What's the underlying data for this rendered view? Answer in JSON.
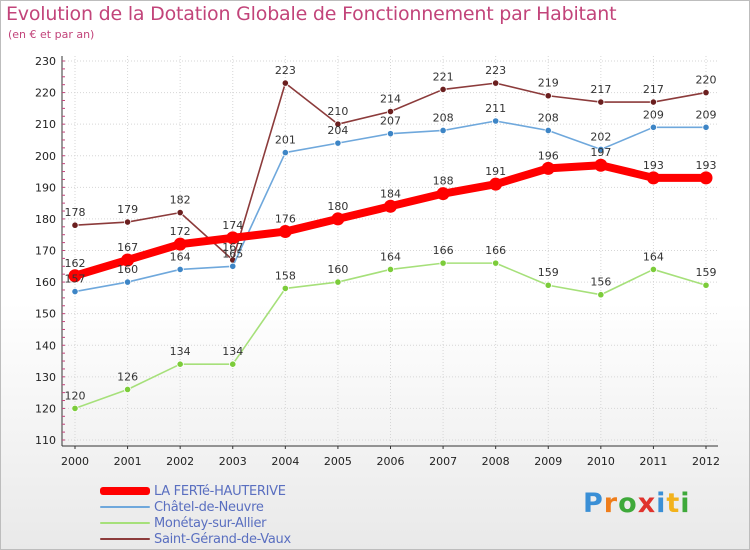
{
  "title": "Evolution de la Dotation Globale de Fonctionnement par Habitant",
  "subtitle": "(en € et par an)",
  "logo": {
    "text": "Proxiti",
    "colors": [
      "#3a8fd6",
      "#ef7d1a",
      "#3ea93a",
      "#e0332d",
      "#3a8fd6",
      "#f2b21c",
      "#3ea93a"
    ]
  },
  "chart_data": {
    "type": "line",
    "x": [
      2000,
      2001,
      2002,
      2003,
      2004,
      2005,
      2006,
      2007,
      2008,
      2009,
      2010,
      2011,
      2012
    ],
    "ylim": [
      110,
      230
    ],
    "yticks": [
      110,
      120,
      130,
      140,
      150,
      160,
      170,
      180,
      190,
      200,
      210,
      220,
      230
    ],
    "grid": true,
    "legend_position": "bottom-left",
    "series": [
      {
        "name": "LA FERTé-HAUTERIVE",
        "color": "#ff0000",
        "values": [
          162,
          167,
          172,
          174,
          176,
          180,
          184,
          188,
          191,
          196,
          197,
          193,
          193
        ]
      },
      {
        "name": "Châtel-de-Neuvre",
        "color": "#6fa8dc",
        "marker": "#3d85c6",
        "values": [
          157,
          160,
          164,
          165,
          201,
          204,
          207,
          208,
          211,
          208,
          202,
          209,
          209
        ]
      },
      {
        "name": "Monétay-sur-Allier",
        "color": "#a6e07a",
        "marker": "#7ccc3a",
        "values": [
          120,
          126,
          134,
          134,
          158,
          160,
          164,
          166,
          166,
          159,
          156,
          164,
          159
        ]
      },
      {
        "name": "Saint-Gérand-de-Vaux",
        "color": "#8c3b3b",
        "marker": "#6b1f1f",
        "values": [
          178,
          179,
          182,
          167,
          223,
          210,
          214,
          221,
          223,
          219,
          217,
          217,
          220
        ]
      }
    ]
  }
}
